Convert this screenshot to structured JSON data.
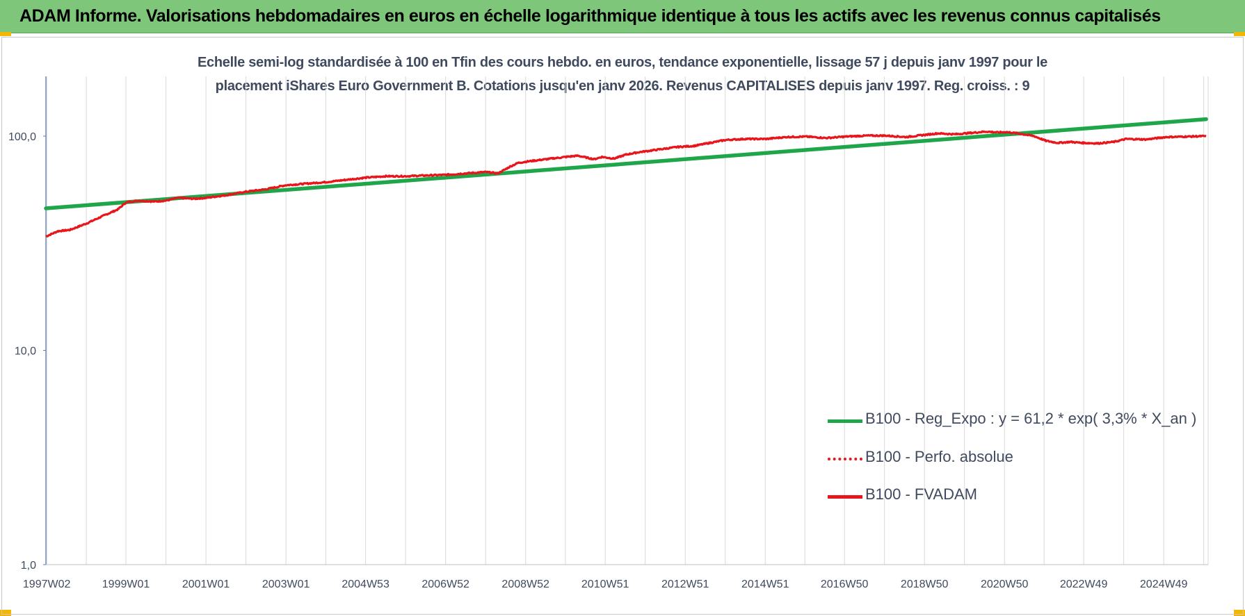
{
  "banner": {
    "title": "ADAM Informe. Valorisations hebdomadaires en euros en échelle logarithmique identique à tous les actifs avec les revenus connus capitalisés"
  },
  "colors": {
    "banner_bg": "#7dc67a",
    "corner_accent": "#f2b705",
    "trend": "#1fa64a",
    "fvadam": "#e8151b",
    "perfo": "#e8151b",
    "grid": "#d9d9d9",
    "text": "#404a5e"
  },
  "chart_data": {
    "type": "line",
    "title_line1": "Echelle semi-log standardisée à 100 en Tfin des cours hebdo. en euros, tendance exponentielle, lissage 57 j depuis janv 1997 pour le",
    "title_line2": "placement iShares Euro Government B. Cotations jusqu'en janv 2026. Revenus CAPITALISES depuis janv 1997. Reg. croiss. : 9",
    "y_scale": "log",
    "ylim": [
      1,
      190
    ],
    "y_ticks": [
      {
        "value": 100,
        "label": "100,0"
      },
      {
        "value": 10,
        "label": "10,0"
      },
      {
        "value": 1,
        "label": "1,0"
      }
    ],
    "xlim": [
      1997.0,
      2026.05
    ],
    "x_ticks": [
      {
        "year": 1997.02,
        "label": "1997W02"
      },
      {
        "year": 1999.0,
        "label": "1999W01"
      },
      {
        "year": 2001.0,
        "label": "2001W01"
      },
      {
        "year": 2003.0,
        "label": "2003W01"
      },
      {
        "year": 2004.99,
        "label": "2004W53"
      },
      {
        "year": 2006.99,
        "label": "2006W52"
      },
      {
        "year": 2008.99,
        "label": "2008W52"
      },
      {
        "year": 2010.98,
        "label": "2010W51"
      },
      {
        "year": 2012.98,
        "label": "2012W51"
      },
      {
        "year": 2014.98,
        "label": "2014W51"
      },
      {
        "year": 2016.96,
        "label": "2016W50"
      },
      {
        "year": 2018.96,
        "label": "2018W50"
      },
      {
        "year": 2020.96,
        "label": "2020W50"
      },
      {
        "year": 2022.94,
        "label": "2022W49"
      },
      {
        "year": 2024.94,
        "label": "2024W49"
      }
    ],
    "grid_x": true,
    "grid_y": false,
    "legend_position": "bottom-right",
    "series": [
      {
        "name": "B100 - Reg_Expo : y = 61,2 * exp( 3,3% *  X_an )",
        "style": "solid-thick",
        "x": [
          1997.0,
          2026.0
        ],
        "y": [
          46.0,
          120.0
        ]
      },
      {
        "name": "B100 - Perfo. absolue",
        "style": "dotted",
        "x": [],
        "y": []
      },
      {
        "name": "B100 - FVADAM",
        "style": "solid",
        "x": [
          1997.0,
          1997.3,
          1997.6,
          1998.0,
          1998.5,
          1998.8,
          1999.0,
          1999.3,
          1999.7,
          2000.0,
          2000.3,
          2000.7,
          2001.0,
          2001.5,
          2002.0,
          2002.5,
          2003.0,
          2003.5,
          2004.0,
          2004.5,
          2005.0,
          2005.5,
          2006.0,
          2006.5,
          2007.0,
          2007.5,
          2008.0,
          2008.3,
          2008.6,
          2008.8,
          2009.0,
          2009.5,
          2010.0,
          2010.3,
          2010.7,
          2010.9,
          2011.2,
          2011.5,
          2011.8,
          2012.0,
          2012.4,
          2012.8,
          2013.2,
          2013.6,
          2014.0,
          2014.5,
          2015.0,
          2015.5,
          2016.0,
          2016.5,
          2017.0,
          2017.5,
          2018.0,
          2018.5,
          2018.9,
          2019.3,
          2019.7,
          2020.0,
          2020.5,
          2020.8,
          2021.0,
          2021.3,
          2021.7,
          2022.0,
          2022.3,
          2022.6,
          2022.9,
          2023.3,
          2023.7,
          2024.0,
          2024.5,
          2025.0,
          2025.5,
          2026.0
        ],
        "y": [
          34.0,
          36.0,
          36.5,
          39.0,
          43.0,
          45.5,
          49.0,
          50.0,
          49.5,
          50.0,
          51.5,
          51.0,
          51.5,
          53.0,
          55.0,
          56.5,
          59.0,
          60.0,
          61.0,
          62.5,
          64.0,
          65.0,
          65.0,
          65.5,
          66.0,
          67.0,
          68.0,
          67.0,
          72.0,
          75.0,
          76.0,
          78.0,
          80.0,
          81.0,
          78.0,
          80.0,
          78.5,
          82.0,
          84.0,
          85.0,
          87.0,
          89.0,
          90.0,
          93.0,
          96.0,
          97.0,
          97.0,
          99.0,
          99.5,
          98.0,
          99.5,
          100.5,
          100.5,
          99.0,
          101.0,
          103.0,
          102.0,
          103.0,
          105.0,
          104.0,
          104.5,
          103.0,
          100.0,
          95.0,
          93.0,
          94.0,
          93.0,
          92.5,
          94.0,
          97.0,
          96.5,
          99.0,
          99.5,
          100.0
        ]
      }
    ]
  }
}
